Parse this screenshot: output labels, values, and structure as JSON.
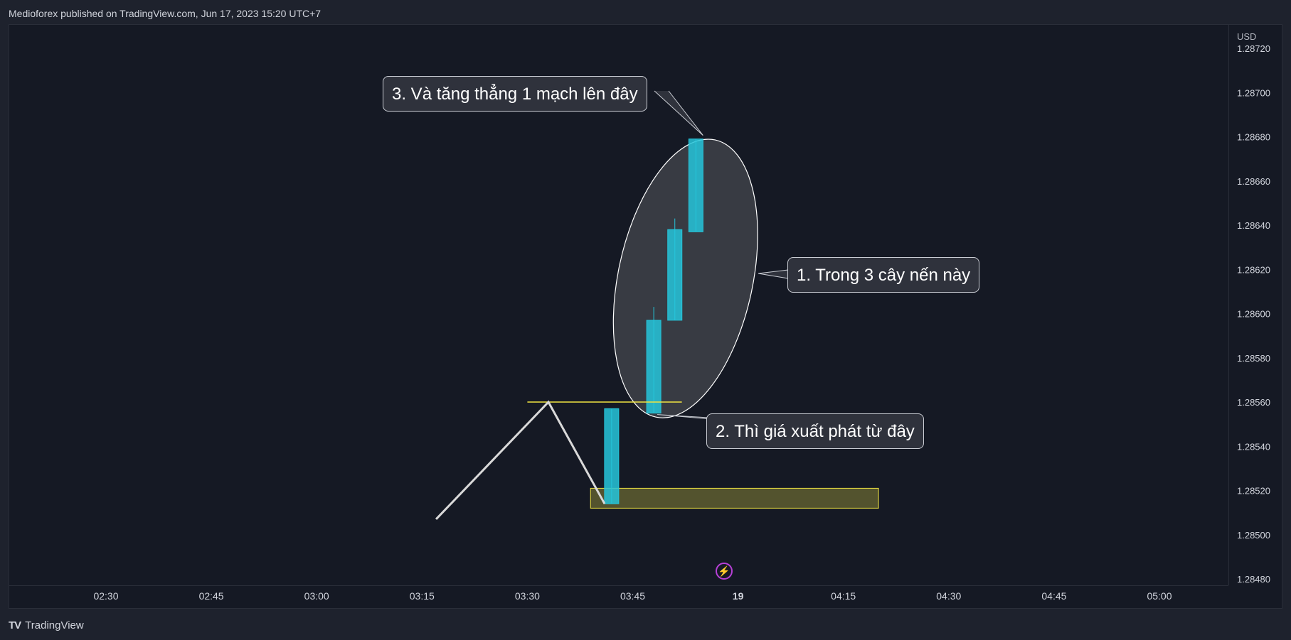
{
  "header": {
    "title": "Medioforex published on TradingView.com, Jun 17, 2023 15:20 UTC+7"
  },
  "price_scale": {
    "currency": "USD",
    "ticks": [
      "1.28720",
      "1.28700",
      "1.28680",
      "1.28660",
      "1.28640",
      "1.28620",
      "1.28600",
      "1.28580",
      "1.28560",
      "1.28540",
      "1.28520",
      "1.28500",
      "1.28480"
    ]
  },
  "time_scale": {
    "ticks": [
      "02:30",
      "02:45",
      "03:00",
      "03:15",
      "03:30",
      "03:45",
      "19",
      "04:15",
      "04:30",
      "04:45",
      "05:00"
    ]
  },
  "annotations": {
    "callout_1": "1. Trong 3 cây nến này",
    "callout_2": "2. Thì giá xuất phát từ đây",
    "callout_3": "3. Và tăng thẳng 1 mạch lên đây"
  },
  "colors": {
    "background": "#151924",
    "candle_up": "#26c6da",
    "zone_fill": "#5a5a30",
    "zone_border": "#f0e442",
    "level_line": "#f0e442",
    "drawing_line": "#d9d9d9",
    "ellipse_fill": "#3a3d46"
  },
  "icons": {
    "bolt": "lightning-icon"
  },
  "footer": {
    "brand": "TradingView",
    "logo": "TV"
  },
  "chart_data": {
    "type": "candlestick",
    "title": "",
    "xlabel": "",
    "ylabel": "",
    "ylim": [
      1.28475,
      1.28725
    ],
    "y_ticks": [
      1.2872,
      1.287,
      1.2868,
      1.2866,
      1.2864,
      1.2862,
      1.286,
      1.2858,
      1.2856,
      1.2854,
      1.2852,
      1.285,
      1.2848
    ],
    "x_ticks": [
      "02:30",
      "02:45",
      "03:00",
      "03:15",
      "03:30",
      "03:45",
      "19",
      "04:15",
      "04:30",
      "04:45",
      "05:00"
    ],
    "candles": [
      {
        "time": "03:42",
        "open": 1.28514,
        "high": 1.28557,
        "low": 1.28514,
        "close": 1.28557
      },
      {
        "time": "03:48",
        "open": 1.28555,
        "high": 1.28603,
        "low": 1.28555,
        "close": 1.28597
      },
      {
        "time": "03:51",
        "open": 1.28597,
        "high": 1.28643,
        "low": 1.28597,
        "close": 1.28638
      },
      {
        "time": "03:54",
        "open": 1.28637,
        "high": 1.28679,
        "low": 1.28637,
        "close": 1.28679
      }
    ],
    "level_line": {
      "price": 1.2856,
      "from": "03:30",
      "to": "03:52"
    },
    "zone": {
      "from": "03:39",
      "to": "04:20",
      "price_low": 1.28512,
      "price_high": 1.28521
    },
    "zigzag": [
      {
        "time": "03:17",
        "price": 1.28507
      },
      {
        "time": "03:33",
        "price": 1.2856
      },
      {
        "time": "03:41",
        "price": 1.28514
      }
    ]
  }
}
